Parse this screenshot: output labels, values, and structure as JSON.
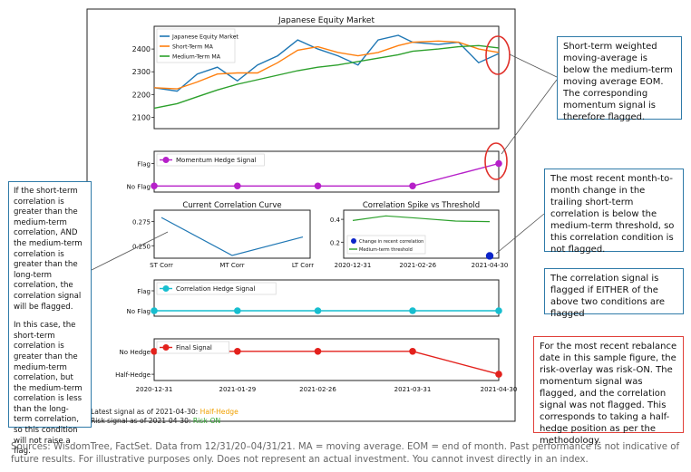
{
  "chart_data": [
    {
      "type": "line",
      "title": "Japanese Equity Market",
      "x": [
        "2020-12-31",
        "2021-01-08",
        "2021-01-15",
        "2021-01-22",
        "2021-01-29",
        "2021-02-05",
        "2021-02-12",
        "2021-02-19",
        "2021-02-26",
        "2021-03-05",
        "2021-03-12",
        "2021-03-19",
        "2021-03-26",
        "2021-03-31",
        "2021-04-09",
        "2021-04-16",
        "2021-04-23",
        "2021-04-30"
      ],
      "ylim": [
        2050,
        2500
      ],
      "yticks": [
        2100,
        2200,
        2300,
        2400
      ],
      "series": [
        {
          "name": "Japanese Equity Market",
          "color": "#1f77b4",
          "values": [
            2230,
            2215,
            2290,
            2320,
            2260,
            2330,
            2370,
            2440,
            2400,
            2370,
            2330,
            2440,
            2460,
            2430,
            2420,
            2430,
            2340,
            2380
          ]
        },
        {
          "name": "Short-Term MA",
          "color": "#ff7f0e",
          "values": [
            2230,
            2225,
            2255,
            2290,
            2295,
            2295,
            2340,
            2395,
            2410,
            2385,
            2370,
            2385,
            2415,
            2430,
            2435,
            2430,
            2400,
            2385
          ]
        },
        {
          "name": "Medium-Term MA",
          "color": "#2ca02c",
          "values": [
            2140,
            2160,
            2190,
            2220,
            2245,
            2265,
            2285,
            2305,
            2320,
            2330,
            2345,
            2360,
            2375,
            2390,
            2400,
            2410,
            2415,
            2405
          ]
        }
      ],
      "legend": "top-left"
    },
    {
      "type": "line",
      "ytick_labels": [
        "No Flag",
        "Flag"
      ],
      "x": [
        "2020-12-31",
        "2021-01-29",
        "2021-02-26",
        "2021-03-31",
        "2021-04-30"
      ],
      "series": [
        {
          "name": "Momentum Hedge Signal",
          "color": "#b620c9",
          "values": [
            0,
            0,
            0,
            0,
            1
          ]
        }
      ],
      "legend": "top-left"
    },
    {
      "type": "line",
      "title": "Current Correlation Curve",
      "categories": [
        "ST Corr",
        "MT Corr",
        "LT Corr"
      ],
      "yticks": [
        0.25,
        0.275
      ],
      "ylim": [
        0.24,
        0.28
      ],
      "series": [
        {
          "color": "#1f77b4",
          "values": [
            0.279,
            0.24,
            0.259
          ]
        }
      ]
    },
    {
      "type": "line",
      "title": "Correlation Spike vs Threshold",
      "x_ticks": [
        "2020-12-31",
        "2021-02-26",
        "2021-04-30"
      ],
      "yticks": [
        0.2,
        0.4
      ],
      "ylim": [
        0.06,
        0.48
      ],
      "series": [
        {
          "name": "Change in recent correlation",
          "color": "#0b24c9",
          "points": [
            [
              "2021-04-30",
              0.08
            ]
          ]
        },
        {
          "name": "Medium-term threshold",
          "color": "#2ca02c",
          "points": [
            [
              "2020-12-31",
              0.39
            ],
            [
              "2021-01-29",
              0.43
            ],
            [
              "2021-02-26",
              0.41
            ],
            [
              "2021-03-31",
              0.385
            ],
            [
              "2021-04-30",
              0.38
            ]
          ]
        }
      ],
      "legend": "bottom-left"
    },
    {
      "type": "line",
      "ytick_labels": [
        "No Flag",
        "Flag"
      ],
      "x": [
        "2020-12-31",
        "2021-01-29",
        "2021-02-26",
        "2021-03-31",
        "2021-04-30"
      ],
      "series": [
        {
          "name": "Correlation Hedge Signal",
          "color": "#17becf",
          "values": [
            0,
            0,
            0,
            0,
            0
          ]
        }
      ],
      "legend": "top-left"
    },
    {
      "type": "line",
      "ytick_labels": [
        "Half-Hedge",
        "No Hedge"
      ],
      "x": [
        "2020-12-31",
        "2021-01-29",
        "2021-02-26",
        "2021-03-31",
        "2021-04-30"
      ],
      "series": [
        {
          "name": "Final Signal",
          "color": "#e3211c",
          "values": [
            1,
            1,
            1,
            1,
            0
          ]
        }
      ],
      "legend": "top-left"
    }
  ],
  "status": {
    "latest_prefix": "Latest signal as of 2021-04-30: ",
    "latest_value": "Half-Hedge",
    "latest_color": "#f0a000",
    "risk_prefix": "Risk signal as of 2021-04-30: ",
    "risk_value": "Risk-ON",
    "risk_color": "#2ca02c"
  },
  "callouts": {
    "momentum": "Short-term weighted moving-average is below the medium-term moving average EOM. The corresponding momentum signal is therefore flagged.",
    "correlation_left_1": "If the short-term correlation is greater than the medium-term correlation, AND the medium-term correlation is greater than the long-term correlation, the correlation signal will be flagged.",
    "correlation_left_2": "In this case, the short-term correlation is greater than the medium-term correlation, but the medium-term correlation is less than the long-term correlation, so this condition will not raise a flag.",
    "spike": "The most recent month-to-month change in the trailing short-term correlation is below the medium-term threshold, so this correlation condition is not flagged.",
    "either": "The correlation signal is flagged if EITHER of the above two conditions are flagged",
    "final": "For the most recent rebalance date in this sample figure, the risk-overlay was risk-ON. The momentum signal was flagged, and the correlation signal was not flagged. This corresponds to taking a half-hedge position as per the methodology."
  },
  "sources": "Sources: WisdomTree, FactSet. Data from 12/31/20–04/31/21. MA = moving average. EOM = end of month. Past performance is not indicative of future results. For illustrative purposes only. Does not represent an actual investment. You cannot invest directly in an index."
}
